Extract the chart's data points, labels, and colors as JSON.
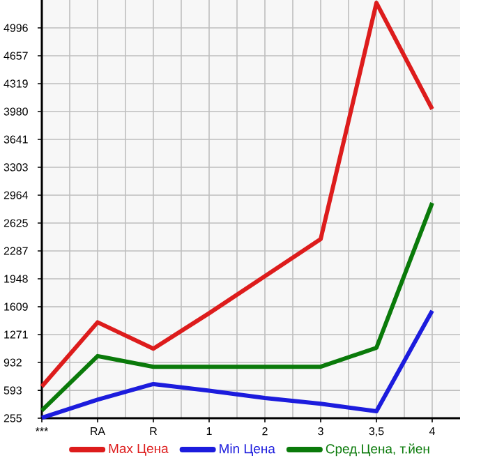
{
  "chart_data": {
    "type": "line",
    "categories": [
      "***",
      "RA",
      "R",
      "1",
      "2",
      "3",
      "3,5",
      "4"
    ],
    "series": [
      {
        "name": "Max Цена",
        "color": "#dd1c1c",
        "values": [
          640,
          1420,
          1100,
          1530,
          1980,
          2430,
          5300,
          4010
        ]
      },
      {
        "name": "Min Цена",
        "color": "#1c1cdd",
        "values": [
          260,
          480,
          670,
          590,
          500,
          430,
          340,
          1560
        ]
      },
      {
        "name": "Сред.Цена, т.йен",
        "color": "#0a7a0a",
        "values": [
          350,
          1010,
          880,
          880,
          880,
          880,
          1110,
          2870
        ]
      }
    ],
    "ylim": [
      255,
      5335
    ],
    "yticks": [
      255,
      593,
      932,
      1271,
      1609,
      1948,
      2287,
      2625,
      2964,
      3303,
      3641,
      3980,
      4319,
      4657,
      4996
    ],
    "grid": true,
    "legend": "bottom",
    "marker": "none",
    "line_style": "solid"
  }
}
